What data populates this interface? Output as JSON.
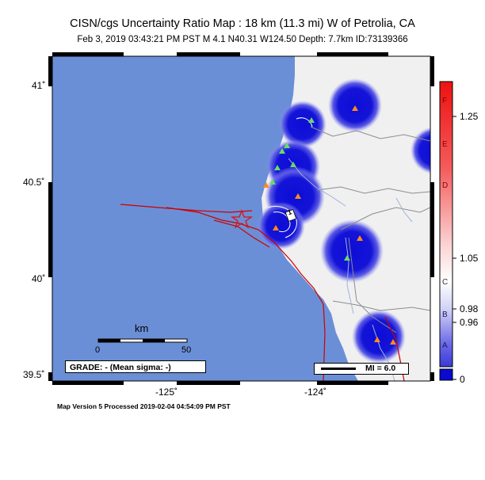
{
  "header": {
    "title": "CISN/cgs Uncertainty Ratio Map : 18 km (11.3 mi) W of Petrolia, CA",
    "subtitle": "Feb  3, 2019 03:43:21 PM PST   M 4.1   N40.31 W124.50   Depth: 7.7km   ID:73139366"
  },
  "axes": {
    "lat_labels": [
      "41˚",
      "40.5˚",
      "40˚",
      "39.5˚"
    ],
    "lon_labels": [
      "-125˚",
      "-124˚"
    ]
  },
  "scalebar": {
    "unit": "km",
    "start": "0",
    "end": "50"
  },
  "grade_box": "GRADE: - (Mean sigma: -)",
  "mi_legend": "MI = 6.0",
  "contour_label": "1",
  "colorbar": {
    "letters": [
      "F",
      "E",
      "D",
      "C",
      "B",
      "A"
    ],
    "values": [
      "1.25",
      "1.05",
      "0.98",
      "0.96",
      "0"
    ]
  },
  "footer": "Map Version 5 Processed 2019-02-04 04:54:09 PM PST",
  "colors": {
    "ocean": "#6b8fd6",
    "land": "#f0f0f0",
    "station_blue": "#1010d8",
    "station_triangle_green": "#66dd66",
    "station_triangle_orange": "#ff8c1a",
    "fault": "#cc0000",
    "epicenter": "#dd1111"
  }
}
